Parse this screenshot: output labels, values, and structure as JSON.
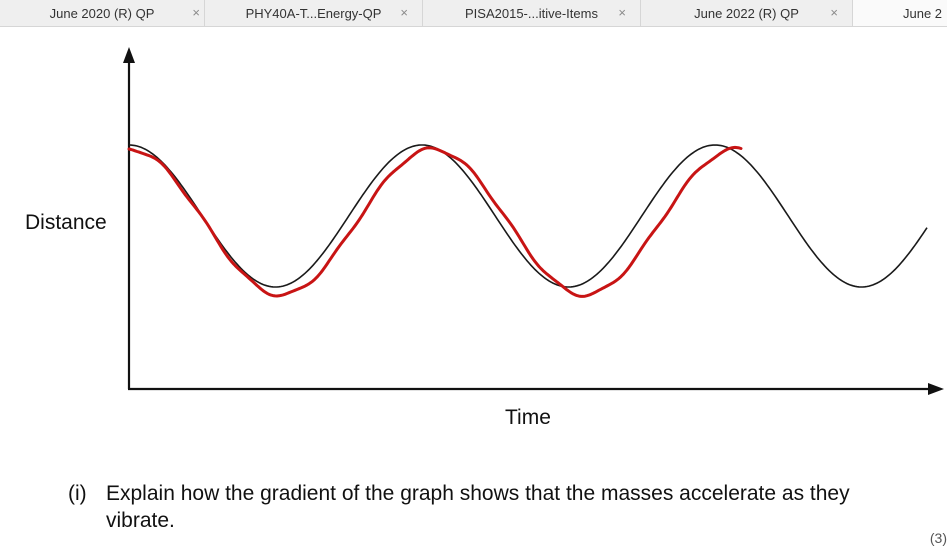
{
  "tabs": [
    {
      "label": "June 2020 (R) QP",
      "close": "×"
    },
    {
      "label": "PHY40A-T...Energy-QP",
      "close": "×"
    },
    {
      "label": "PISA2015-...itive-Items",
      "close": "×"
    },
    {
      "label": "June 2022 (R) QP",
      "close": "×"
    },
    {
      "label": "June 2",
      "close": ""
    }
  ],
  "graph": {
    "ylabel": "Distance",
    "xlabel": "Time",
    "colors": {
      "axis": "#111111",
      "printed_curve": "#1a1a1a",
      "handdrawn_curve": "#c81414"
    }
  },
  "question": {
    "number": "(i)",
    "text": "Explain how the gradient of the graph shows that the masses accelerate as they vibrate."
  },
  "marks": "(3)"
}
